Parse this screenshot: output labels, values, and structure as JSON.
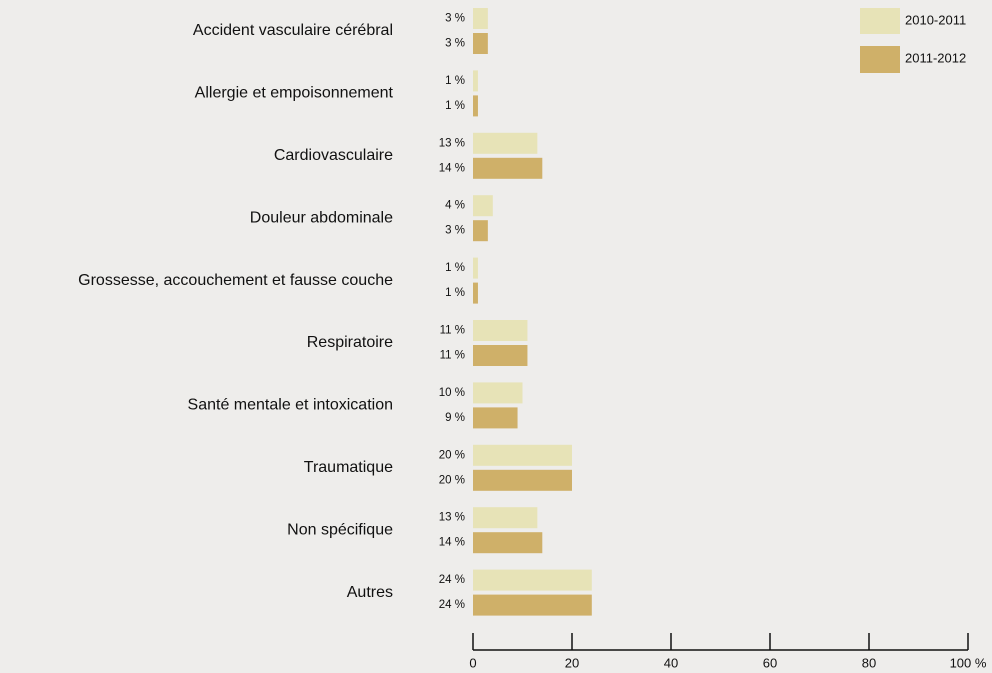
{
  "chart_data": {
    "type": "bar",
    "orientation": "horizontal",
    "categories": [
      "Accident vasculaire cérébral",
      "Allergie et empoisonnement",
      "Cardiovasculaire",
      "Douleur abdominale",
      "Grossesse, accouchement et fausse couche",
      "Respiratoire",
      "Santé mentale et intoxication",
      "Traumatique",
      "Non spécifique",
      "Autres"
    ],
    "series": [
      {
        "name": "2010-2011",
        "color": "#e7e3b7",
        "values": [
          3,
          1,
          13,
          4,
          1,
          11,
          10,
          20,
          13,
          24
        ],
        "value_labels": [
          "3 %",
          "1 %",
          "13 %",
          "4 %",
          "1 %",
          "11 %",
          "10 %",
          "20 %",
          "13 %",
          "24 %"
        ]
      },
      {
        "name": "2011-2012",
        "color": "#cfb069",
        "values": [
          3,
          1,
          14,
          3,
          1,
          11,
          9,
          20,
          14,
          24
        ],
        "value_labels": [
          "3 %",
          "1 %",
          "14 %",
          "3 %",
          "1 %",
          "11 %",
          "9 %",
          "20 %",
          "14 %",
          "24 %"
        ]
      }
    ],
    "xlim": [
      0,
      100
    ],
    "xticks": [
      0,
      20,
      40,
      60,
      80,
      {
        "value": 100,
        "label": "100 %"
      }
    ],
    "legend": "top-right"
  }
}
